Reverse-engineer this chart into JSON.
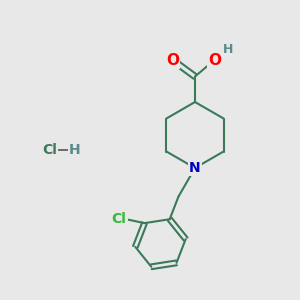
{
  "background_color": "#e8e8e8",
  "bond_color": "#3a7a5a",
  "bond_width": 1.5,
  "atom_colors": {
    "O": "#ff0000",
    "N": "#0000bb",
    "Cl_green": "#33bb33",
    "Cl_teal": "#3a7a5a",
    "H_teal": "#5a8a8a",
    "H_gray": "#888888"
  },
  "font_size": 10
}
